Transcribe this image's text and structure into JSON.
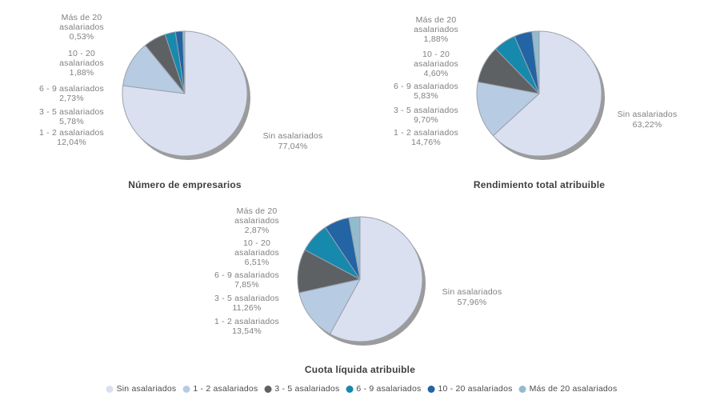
{
  "colors": {
    "background": "#ffffff",
    "palette": [
      "#dbe0f0",
      "#b7cbe2",
      "#5d6163",
      "#1789ad",
      "#2264a4",
      "#92bccd"
    ],
    "pie_shadow": "#9b9b9b",
    "slice_border": "#9aa0ac",
    "label_text": "#808080",
    "title_text": "#3f3f3f",
    "legend_text": "#4c4c4c"
  },
  "category_label_lines": {
    "Sin asalariados": [
      "Sin asalariados"
    ],
    "1 - 2 asalariados": [
      "1 - 2 asalariados"
    ],
    "3 - 5 asalariados": [
      "3 - 5 asalariados"
    ],
    "6 - 9 asalariados": [
      "6 - 9 asalariados"
    ],
    "10 - 20 asalariados": [
      "10 - 20",
      "asalariados"
    ],
    "Más de 20 asalariados": [
      "Más de 20",
      "asalariados"
    ]
  },
  "legend": {
    "position": "bottom-center",
    "items": [
      "Sin asalariados",
      "1 - 2 asalariados",
      "3 - 5 asalariados",
      "6 - 9 asalariados",
      "10 - 20 asalariados",
      "Más de 20 asalariados"
    ]
  },
  "chart_data": [
    {
      "type": "pie",
      "title": "Número de empresarios",
      "categories": [
        "Sin asalariados",
        "1 - 2 asalariados",
        "3 - 5 asalariados",
        "6 - 9 asalariados",
        "10 - 20 asalariados",
        "Más de 20 asalariados"
      ],
      "values": [
        77.04,
        12.04,
        5.78,
        2.73,
        1.88,
        0.53
      ],
      "value_labels": [
        "77,04%",
        "12,04%",
        "5,78%",
        "2,73%",
        "1,88%",
        "0,53%"
      ]
    },
    {
      "type": "pie",
      "title": "Rendimiento total atribuible",
      "categories": [
        "Sin asalariados",
        "1 - 2 asalariados",
        "3 - 5 asalariados",
        "6 - 9 asalariados",
        "10 - 20 asalariados",
        "Más de 20 asalariados"
      ],
      "values": [
        63.22,
        14.76,
        9.7,
        5.83,
        4.6,
        1.88
      ],
      "value_labels": [
        "63,22%",
        "14,76%",
        "9,70%",
        "5,83%",
        "4,60%",
        "1,88%"
      ]
    },
    {
      "type": "pie",
      "title": "Cuota líquida atribuible",
      "categories": [
        "Sin asalariados",
        "1 - 2 asalariados",
        "3 - 5 asalariados",
        "6 - 9 asalariados",
        "10 - 20 asalariados",
        "Más de 20 asalariados"
      ],
      "values": [
        57.96,
        13.54,
        11.26,
        7.85,
        6.51,
        2.87
      ],
      "value_labels": [
        "57,96%",
        "13,54%",
        "11,26%",
        "7,85%",
        "6,51%",
        "2,87%"
      ]
    }
  ]
}
